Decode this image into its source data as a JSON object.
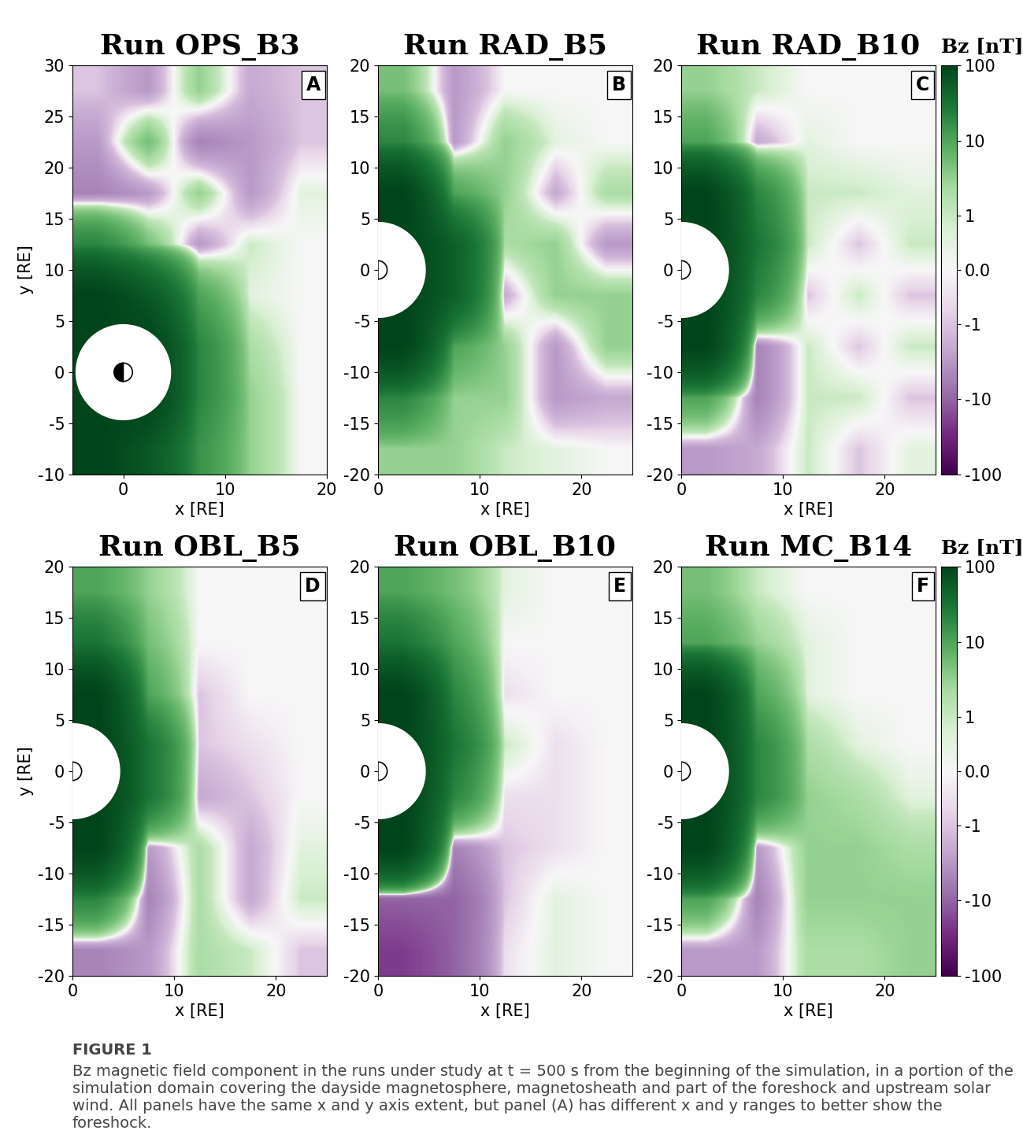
{
  "chart_data": [
    {
      "type": "heatmap",
      "title": "Run OPS_B3",
      "panel_label": "A",
      "xlabel": "x [RE]",
      "ylabel": "y [RE]",
      "xlim": [
        -5,
        20
      ],
      "ylim": [
        -10,
        30
      ],
      "xticks": [
        0,
        10,
        20
      ],
      "yticks": [
        -10,
        -5,
        0,
        5,
        10,
        15,
        20,
        25,
        30
      ],
      "inner_boundary_radius": 4.7,
      "cells": [
        [
          -1,
          -3,
          3,
          -2,
          -1
        ],
        [
          -3,
          5,
          -5,
          -3,
          -1
        ],
        [
          -5,
          -3,
          3,
          -3,
          0.5
        ],
        [
          20,
          5,
          -3,
          1,
          0
        ],
        [
          100,
          60,
          10,
          0.5,
          0
        ],
        [
          100,
          100,
          20,
          2,
          0
        ],
        [
          100,
          100,
          20,
          3,
          0
        ],
        [
          100,
          60,
          15,
          3,
          0
        ]
      ]
    },
    {
      "type": "heatmap",
      "title": "Run RAD_B5",
      "panel_label": "B",
      "xlabel": "x [RE]",
      "xlim": [
        0,
        25
      ],
      "ylim": [
        -20,
        20
      ],
      "xticks": [
        0,
        10,
        20
      ],
      "yticks": [
        -20,
        -15,
        -10,
        -5,
        0,
        5,
        10,
        15,
        20
      ],
      "inner_boundary_radius": 4.7,
      "cells": [
        [
          5,
          -3,
          0,
          0,
          0
        ],
        [
          20,
          -3,
          3,
          0.5,
          0
        ],
        [
          100,
          10,
          3,
          -2,
          2
        ],
        [
          100,
          50,
          2,
          3,
          -3
        ],
        [
          100,
          50,
          -2,
          3,
          3
        ],
        [
          100,
          10,
          3,
          -3,
          3
        ],
        [
          20,
          3,
          3,
          -3,
          -2
        ],
        [
          3,
          3,
          1,
          0.5,
          0
        ]
      ]
    },
    {
      "type": "heatmap",
      "title": "Run RAD_B10",
      "panel_label": "C",
      "xlabel": "x [RE]",
      "xlim": [
        0,
        25
      ],
      "ylim": [
        -20,
        20
      ],
      "xticks": [
        0,
        10,
        20
      ],
      "yticks": [
        -20,
        -15,
        -10,
        -5,
        0,
        5,
        10,
        15,
        20
      ],
      "inner_boundary_radius": 4.7,
      "cells": [
        [
          3,
          1,
          0,
          0,
          0
        ],
        [
          10,
          -2,
          0.5,
          0,
          0
        ],
        [
          100,
          20,
          1,
          1,
          0.5
        ],
        [
          100,
          30,
          1,
          -1,
          1
        ],
        [
          100,
          20,
          -1,
          1,
          -1
        ],
        [
          100,
          -5,
          1,
          -1,
          1
        ],
        [
          10,
          -5,
          1,
          1,
          -1
        ],
        [
          -3,
          -2,
          1,
          -1,
          0.5
        ]
      ],
      "colorbar": {
        "label": "Bz [nT]",
        "log": true,
        "range": [
          -100,
          100
        ],
        "ticks": [
          -100,
          -10,
          -1,
          {
            "value": 0,
            "label": "0.0"
          },
          1,
          10,
          100
        ]
      }
    },
    {
      "type": "heatmap",
      "title": "Run OBL_B5",
      "panel_label": "D",
      "xlabel": "x [RE]",
      "ylabel": "y [RE]",
      "xlim": [
        0,
        25
      ],
      "ylim": [
        -20,
        20
      ],
      "xticks": [
        0,
        10,
        20
      ],
      "yticks": [
        -20,
        -15,
        -10,
        -5,
        0,
        5,
        10,
        15,
        20
      ],
      "inner_boundary_radius": 4.7,
      "cells": [
        [
          10,
          3,
          0,
          0,
          0
        ],
        [
          30,
          5,
          0,
          0,
          0
        ],
        [
          100,
          10,
          -1,
          0,
          0
        ],
        [
          100,
          30,
          -1,
          -0.5,
          0
        ],
        [
          100,
          30,
          -2,
          -1,
          0
        ],
        [
          100,
          -3,
          2,
          -2,
          0.5
        ],
        [
          20,
          -5,
          2,
          -2,
          1
        ],
        [
          -5,
          -3,
          2,
          1,
          -1
        ]
      ]
    },
    {
      "type": "heatmap",
      "title": "Run OBL_B10",
      "panel_label": "E",
      "xlabel": "x [RE]",
      "xlim": [
        0,
        25
      ],
      "ylim": [
        -20,
        20
      ],
      "xticks": [
        0,
        10,
        20
      ],
      "yticks": [
        -20,
        -15,
        -10,
        -5,
        0,
        5,
        10,
        15,
        20
      ],
      "inner_boundary_radius": 4.7,
      "cells": [
        [
          10,
          5,
          0.5,
          0,
          0
        ],
        [
          30,
          10,
          0,
          0,
          0
        ],
        [
          100,
          20,
          -0.5,
          0,
          0
        ],
        [
          100,
          30,
          1,
          -0.5,
          0
        ],
        [
          100,
          20,
          -0.5,
          -0.5,
          0
        ],
        [
          100,
          -5,
          -1,
          -0.5,
          0
        ],
        [
          -10,
          -10,
          -1,
          0.5,
          0
        ],
        [
          -20,
          -10,
          -0.5,
          0.5,
          0
        ]
      ]
    },
    {
      "type": "heatmap",
      "title": "Run MC_B14",
      "panel_label": "F",
      "xlabel": "x [RE]",
      "xlim": [
        0,
        25
      ],
      "ylim": [
        -20,
        20
      ],
      "xticks": [
        0,
        10,
        20
      ],
      "yticks": [
        -20,
        -15,
        -10,
        -5,
        0,
        5,
        10,
        15,
        20
      ],
      "inner_boundary_radius": 4.7,
      "cells": [
        [
          5,
          1,
          0,
          0,
          0
        ],
        [
          10,
          3,
          0.5,
          0,
          0
        ],
        [
          100,
          10,
          0.5,
          0,
          0
        ],
        [
          100,
          20,
          2,
          0.5,
          0
        ],
        [
          100,
          20,
          3,
          2,
          0.5
        ],
        [
          100,
          -3,
          3,
          3,
          2
        ],
        [
          10,
          -5,
          3,
          3,
          3
        ],
        [
          -3,
          -3,
          2,
          2,
          3
        ]
      ],
      "colorbar": {
        "label": "Bz [nT]",
        "log": true,
        "range": [
          -100,
          100
        ],
        "ticks": [
          -100,
          -10,
          -1,
          {
            "value": 0,
            "label": "0.0"
          },
          1,
          10,
          100
        ]
      }
    }
  ],
  "figure_caption": {
    "title": "FIGURE 1",
    "text": "Bz magnetic field component in the runs under study at t = 500 s from the beginning of the simulation, in a portion of the simulation domain covering the dayside magnetosphere, magnetosheath and part of the foreshock and upstream solar wind. All panels have the same x and y axis extent, but panel (A) has different x and y ranges to better show the foreshock."
  }
}
